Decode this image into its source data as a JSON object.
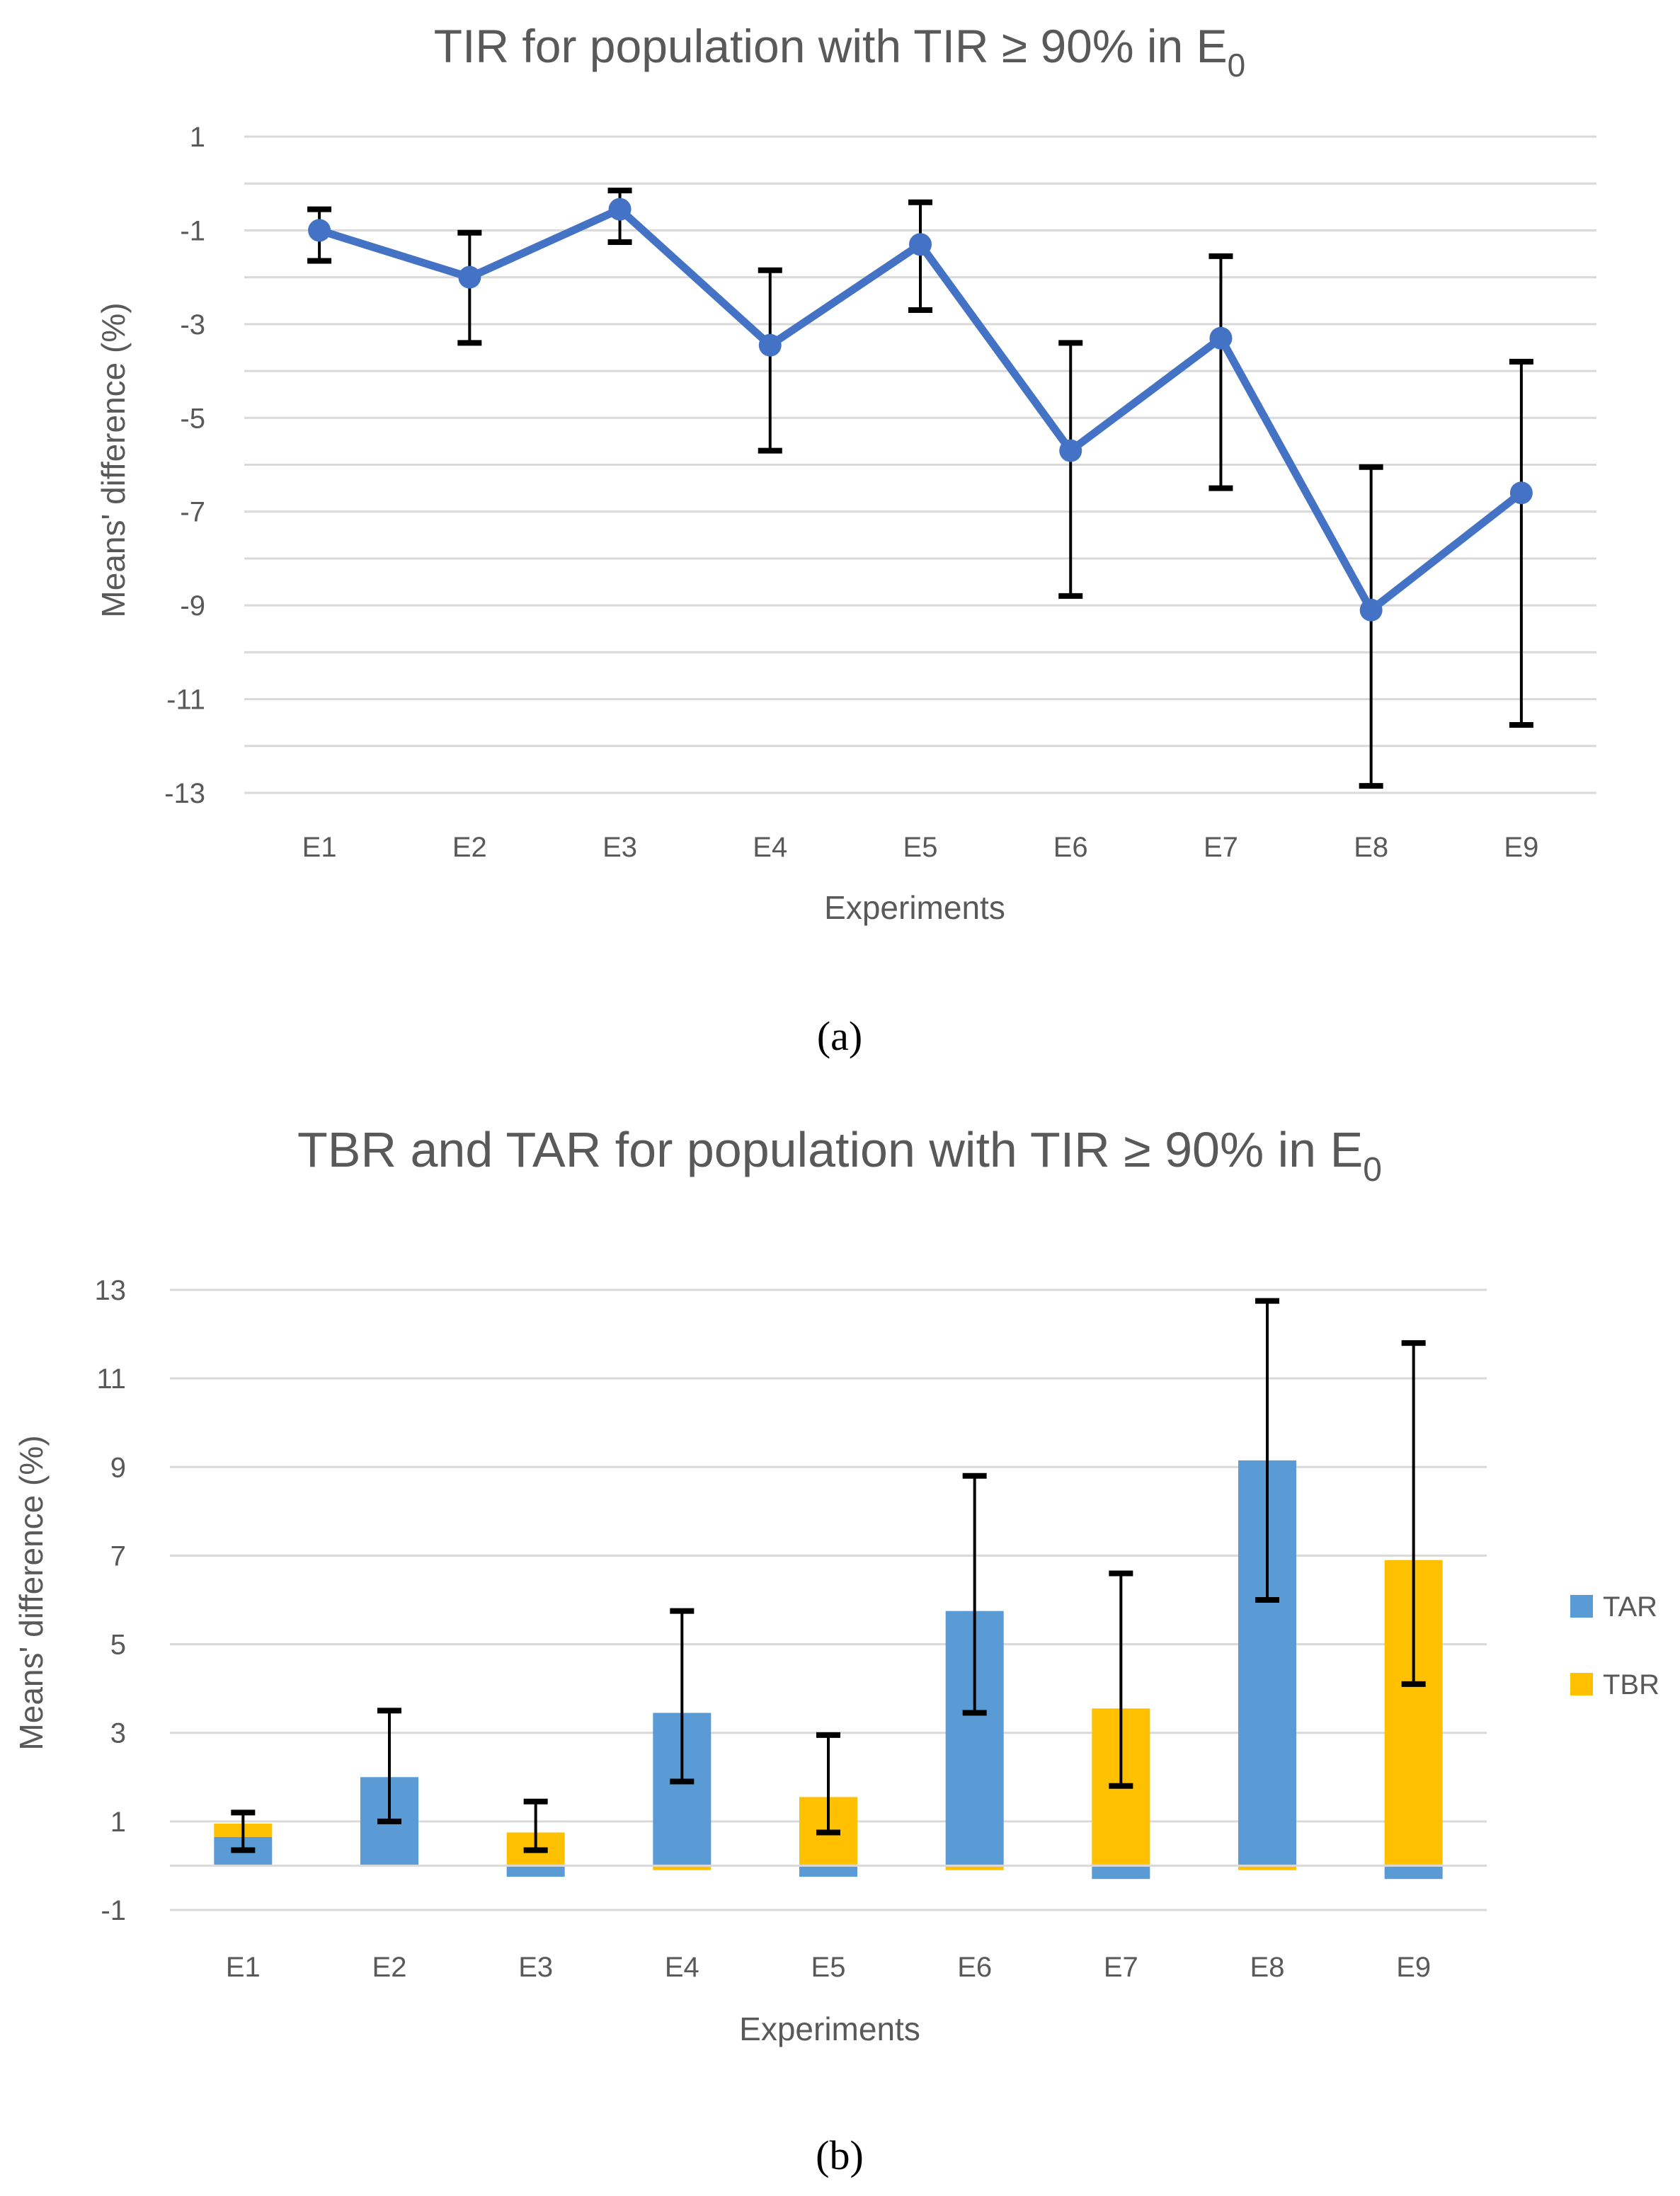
{
  "chart_data": [
    {
      "type": "line",
      "title": "TIR for population with TIR ≥ 90% in E",
      "title_subscript": "0",
      "caption": "(a)",
      "xlabel": "Experiments",
      "ylabel": "Means' difference (%)",
      "ylim": [
        -13,
        1
      ],
      "yticks": [
        1,
        -1,
        -3,
        -5,
        -7,
        -9,
        -11,
        -13
      ],
      "ytick_labels": [
        "1",
        "-1",
        "-3",
        "-5",
        "-7",
        "-9",
        "-11",
        "-13"
      ],
      "grid": true,
      "categories": [
        "E1",
        "E2",
        "E3",
        "E4",
        "E5",
        "E6",
        "E7",
        "E8",
        "E9"
      ],
      "series": [
        {
          "name": "TIR",
          "color": "#4472c4",
          "values": [
            -1.0,
            -2.0,
            -0.55,
            -3.45,
            -1.3,
            -5.7,
            -3.3,
            -9.1,
            -6.6
          ],
          "error_low": [
            -1.65,
            -3.4,
            -1.25,
            -5.7,
            -2.7,
            -8.8,
            -6.5,
            -12.85,
            -11.55
          ],
          "error_high": [
            -0.55,
            -1.05,
            -0.15,
            -1.85,
            -0.4,
            -3.4,
            -1.55,
            -6.05,
            -3.8
          ]
        }
      ]
    },
    {
      "type": "bar",
      "stacked": true,
      "title": "TBR and TAR for population with TIR ≥ 90% in E",
      "title_subscript": "0",
      "caption": "(b)",
      "xlabel": "Experiments",
      "ylabel": "Means' difference (%)",
      "ylim": [
        -1,
        13
      ],
      "yticks": [
        13,
        11,
        9,
        7,
        5,
        3,
        1,
        -1
      ],
      "ytick_labels": [
        "13",
        "11",
        "9",
        "7",
        "5",
        "3",
        "1",
        "-1"
      ],
      "grid": true,
      "legend_position": "right",
      "categories": [
        "E1",
        "E2",
        "E3",
        "E4",
        "E5",
        "E6",
        "E7",
        "E8",
        "E9"
      ],
      "series": [
        {
          "name": "TAR",
          "color": "#5b9bd5",
          "values": [
            0.65,
            2.0,
            -0.25,
            3.45,
            -0.25,
            5.75,
            -0.3,
            9.15,
            -0.3
          ]
        },
        {
          "name": "TBR",
          "color": "#ffc000",
          "values": [
            0.3,
            0.0,
            0.75,
            -0.1,
            1.55,
            -0.1,
            3.55,
            -0.1,
            6.9
          ]
        }
      ],
      "error_center": [
        0.95,
        2.0,
        0.75,
        3.45,
        1.55,
        5.75,
        3.55,
        9.15,
        6.9
      ],
      "error_low": [
        0.35,
        1.0,
        0.35,
        1.9,
        0.75,
        3.45,
        1.8,
        6.0,
        4.1
      ],
      "error_high": [
        1.2,
        3.5,
        1.45,
        5.75,
        2.95,
        8.8,
        6.6,
        12.75,
        11.8
      ]
    }
  ]
}
